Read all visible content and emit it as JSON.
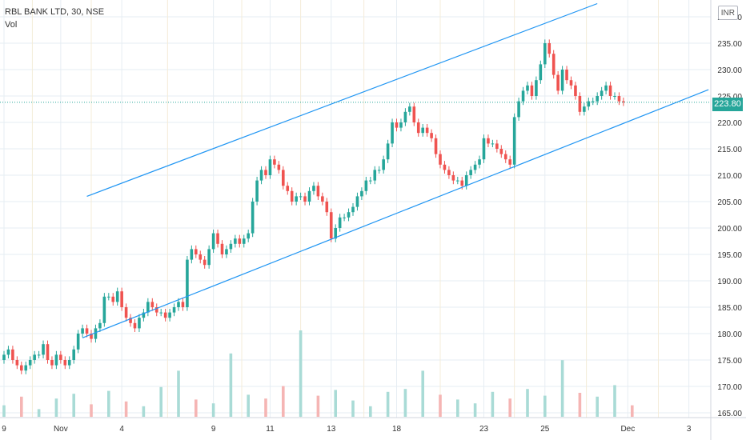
{
  "legend": {
    "symbol": "RBL BANK LTD, 30, NSE",
    "indicator": "Vol"
  },
  "currency": "INR",
  "last_price": "223.80",
  "colors": {
    "up": "#26a69a",
    "down": "#ef5350",
    "vol_up": "#a9dbd6",
    "vol_down": "#f5b5b4",
    "channel": "#2196f3",
    "grid": "#e6edf3",
    "axis_text": "#333333"
  },
  "chart_data": {
    "type": "candlestick",
    "title": "RBL BANK LTD, 30, NSE",
    "ylim": [
      165,
      242
    ],
    "y_ticks": [
      "165.00",
      "170.00",
      "175.00",
      "180.00",
      "185.00",
      "190.00",
      "195.00",
      "200.00",
      "205.00",
      "210.00",
      "215.00",
      "220.00",
      "225.00",
      "230.00",
      "235.00",
      "240.00"
    ],
    "x_ticks": [
      {
        "label": "9",
        "bar": 0
      },
      {
        "label": "Nov",
        "bar": 13
      },
      {
        "label": "4",
        "bar": 27
      },
      {
        "label": "9",
        "bar": 48
      },
      {
        "label": "11",
        "bar": 61
      },
      {
        "label": "13",
        "bar": 75
      },
      {
        "label": "18",
        "bar": 90
      },
      {
        "label": "23",
        "bar": 110
      },
      {
        "label": "25",
        "bar": 124
      },
      {
        "label": "Dec",
        "bar": 143
      },
      {
        "label": "3",
        "bar": 157
      }
    ],
    "closes": [
      176,
      177,
      175,
      174,
      173,
      174,
      175,
      176,
      176,
      178,
      175,
      174,
      176,
      175,
      174,
      175,
      177,
      180,
      181,
      180,
      179,
      181,
      182,
      187,
      187,
      186,
      188,
      185,
      183,
      182,
      181,
      183,
      184,
      186,
      185,
      184,
      184,
      183,
      184,
      185,
      186,
      185,
      194,
      196,
      195,
      194,
      193,
      196,
      199,
      197,
      195,
      196,
      197,
      198,
      197,
      198,
      199,
      205,
      209,
      211,
      210,
      213,
      212,
      211,
      208,
      207,
      205,
      206,
      206,
      205,
      207,
      208,
      206,
      205,
      203,
      198,
      200,
      202,
      202,
      203,
      204,
      206,
      207,
      209,
      209,
      211,
      211,
      213,
      216,
      220,
      219,
      220,
      222,
      223,
      220,
      218,
      219,
      218,
      217,
      214,
      212,
      211,
      210,
      209,
      209,
      208,
      210,
      211,
      212,
      213,
      217,
      216,
      216,
      215,
      214,
      213,
      212,
      221,
      224,
      226,
      227,
      225,
      228,
      231,
      235,
      233,
      229,
      226,
      230,
      228,
      227,
      225,
      222,
      223,
      224,
      224,
      225,
      226,
      227,
      225,
      225,
      224,
      223.8
    ],
    "volume": {
      "bar_stride": 4,
      "values": [
        1.2,
        2.1,
        0.8,
        1.9,
        2.4,
        1.3,
        2.7,
        1.6,
        1.1,
        3.1,
        4.8,
        1.8,
        1.4,
        6.6,
        2.3,
        1.9,
        3.2,
        9.0,
        2.2,
        2.8,
        1.7,
        1.1,
        2.6,
        2.9,
        4.8,
        2.3,
        1.8,
        1.4,
        2.6,
        1.9,
        2.9,
        2.2,
        5.9,
        2.5,
        2.1,
        3.3,
        1.2
      ],
      "peak_value": 9.0
    },
    "channel": {
      "upper": [
        [
          19,
          206
        ],
        [
          136,
          242.5
        ]
      ],
      "lower": [
        [
          18,
          179.2
        ],
        [
          161.5,
          226.2
        ]
      ]
    }
  }
}
